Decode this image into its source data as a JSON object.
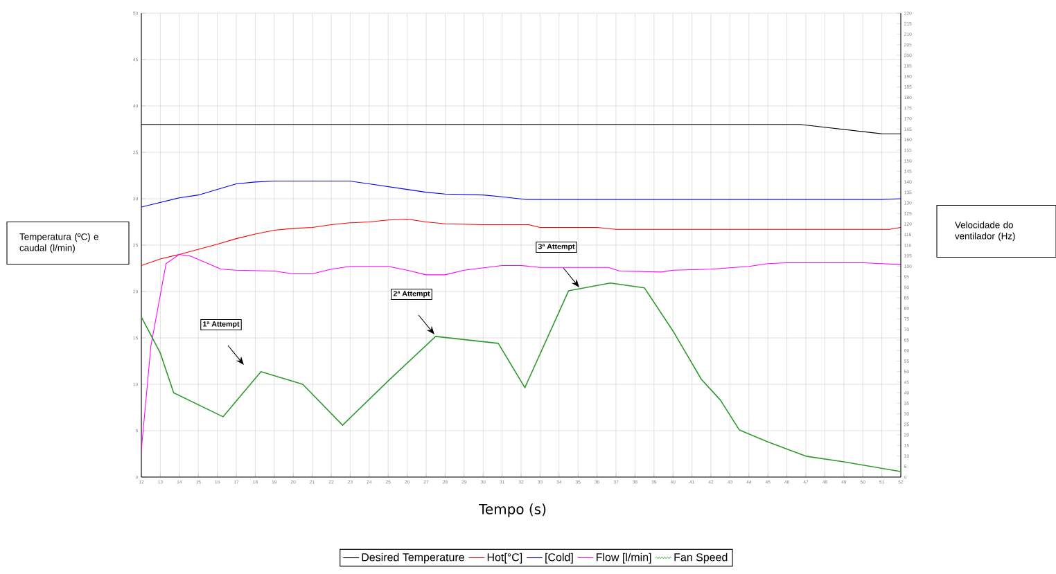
{
  "chart_data": {
    "type": "line",
    "xlabel": "Tempo (s)",
    "ylabel": "Temperatura (ºC) e caudal (l/min)",
    "y2label": "Velocidade do ventilador (Hz)",
    "xlim": [
      12,
      52
    ],
    "xticks": [
      12,
      13,
      14,
      15,
      16,
      17,
      18,
      19,
      20,
      21,
      22,
      23,
      24,
      25,
      26,
      27,
      28,
      29,
      30,
      31,
      32,
      33,
      34,
      35,
      36,
      37,
      38,
      39,
      40,
      41,
      42,
      43,
      44,
      45,
      46,
      47,
      48,
      49,
      50,
      51,
      52
    ],
    "ylim": [
      0,
      50
    ],
    "yticks": [
      0,
      5,
      10,
      15,
      20,
      25,
      30,
      35,
      40,
      45,
      50
    ],
    "y2lim": [
      0,
      220
    ],
    "y2ticks": [
      0,
      5,
      10,
      15,
      20,
      25,
      30,
      35,
      40,
      45,
      50,
      55,
      60,
      65,
      70,
      75,
      80,
      85,
      90,
      95,
      100,
      105,
      110,
      115,
      120,
      125,
      130,
      135,
      140,
      145,
      150,
      155,
      160,
      165,
      170,
      175,
      180,
      185,
      190,
      195,
      200,
      205,
      210,
      215,
      220
    ],
    "grid": true,
    "legend": "bottom",
    "series": [
      {
        "name": "Desired Temperature",
        "color": "#000000",
        "x": [
          12,
          46.7,
          51,
          52
        ],
        "values": [
          38,
          38,
          37,
          37
        ]
      },
      {
        "name": "Hot[°C]",
        "color": "#ff0000",
        "x": [
          12,
          13,
          14,
          16,
          17,
          18,
          19,
          20,
          21,
          22,
          23,
          24,
          25,
          26,
          27,
          28,
          30,
          32.4,
          33,
          36,
          37,
          51.4,
          52
        ],
        "values": [
          22.8,
          23.5,
          24,
          25.1,
          25.7,
          26.2,
          26.6,
          26.8,
          26.9,
          27.2,
          27.4,
          27.5,
          27.7,
          27.8,
          27.5,
          27.3,
          27.2,
          27.2,
          26.9,
          26.9,
          26.7,
          26.7,
          26.9
        ]
      },
      {
        "name": "[Cold]",
        "color": "#0000ff",
        "x": [
          12,
          14,
          15,
          16,
          17,
          18,
          19,
          23,
          24,
          26,
          27,
          28,
          30,
          31,
          32.3,
          34,
          51,
          52
        ],
        "values": [
          29.1,
          30.1,
          30.4,
          31,
          31.6,
          31.8,
          31.9,
          31.9,
          31.6,
          31,
          30.7,
          30.5,
          30.4,
          30.2,
          29.9,
          29.9,
          29.9,
          30
        ]
      },
      {
        "name": "Flow [l/min]",
        "color": "#ff00ff",
        "x": [
          12,
          12.5,
          13.3,
          14,
          14.6,
          15.4,
          16.2,
          17,
          19,
          20,
          21,
          22,
          23,
          25,
          26,
          27,
          28,
          29,
          31,
          32,
          33,
          36.6,
          37.2,
          39.4,
          40,
          42,
          44,
          45,
          46,
          50,
          51,
          52
        ],
        "values": [
          2.9,
          14.1,
          23,
          24,
          23.8,
          23.1,
          22.4,
          22.3,
          22.2,
          21.9,
          21.9,
          22.4,
          22.7,
          22.7,
          22.3,
          21.8,
          21.8,
          22.3,
          22.8,
          22.8,
          22.6,
          22.6,
          22.2,
          22.1,
          22.3,
          22.4,
          22.7,
          23,
          23.1,
          23.1,
          23,
          22.9
        ]
      },
      {
        "name": "Fan Speed",
        "color": "#2e9a2e",
        "axis": "y2",
        "x": [
          12,
          13,
          13.7,
          16.3,
          18.3,
          20.5,
          22.6,
          25,
          27.5,
          30.8,
          32.2,
          34.5,
          36.7,
          38.5,
          40,
          41.5,
          42.5,
          43.5,
          45,
          47,
          49,
          52
        ],
        "values": [
          75.9,
          58.8,
          40,
          28.6,
          50,
          44,
          24.6,
          45.6,
          66.7,
          63.4,
          42.4,
          88.3,
          92,
          89.7,
          69.3,
          46.3,
          36.5,
          22.3,
          16.7,
          9.9,
          7.2,
          2.6
        ]
      }
    ],
    "annotations": [
      "1ª Attempt",
      "2ª Attempt",
      "3ª Attempt"
    ]
  }
}
